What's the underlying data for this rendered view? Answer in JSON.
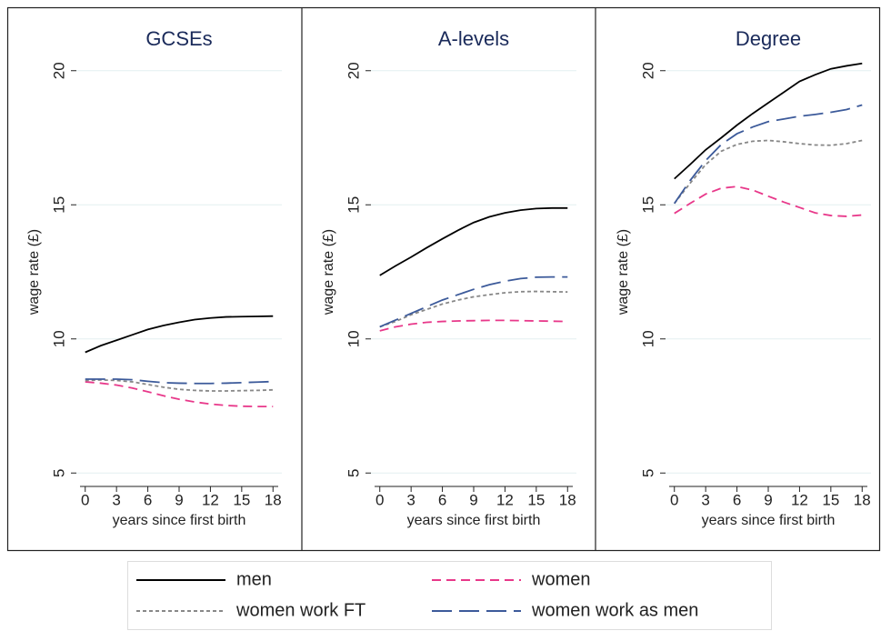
{
  "chart_data": [
    {
      "type": "line",
      "title": "GCSEs",
      "x_label": "years since first birth",
      "y_label": "wage rate (£)",
      "x": [
        0,
        1.5,
        3,
        4.5,
        6,
        7.5,
        9,
        10.5,
        12,
        13.5,
        15,
        16.5,
        18
      ],
      "xlim": [
        -0.5,
        18.5
      ],
      "xticks": [
        0,
        3,
        6,
        9,
        12,
        15,
        18
      ],
      "ylim": [
        4.5,
        20.5
      ],
      "yticks": [
        5,
        10,
        15,
        20
      ],
      "grid": true,
      "series": [
        {
          "name": "men",
          "color": "#000000",
          "style": "solid",
          "values": [
            9.5,
            9.75,
            9.95,
            10.15,
            10.35,
            10.5,
            10.62,
            10.72,
            10.78,
            10.82,
            10.83,
            10.84,
            10.85
          ]
        },
        {
          "name": "women",
          "color": "#e8388a",
          "style": "dashed",
          "values": [
            8.4,
            8.35,
            8.28,
            8.17,
            8.03,
            7.88,
            7.75,
            7.65,
            7.57,
            7.52,
            7.49,
            7.48,
            7.48
          ]
        },
        {
          "name": "women work FT",
          "color": "#888888",
          "style": "dotted",
          "values": [
            8.45,
            8.47,
            8.45,
            8.4,
            8.3,
            8.2,
            8.12,
            8.08,
            8.06,
            8.06,
            8.07,
            8.08,
            8.1
          ]
        },
        {
          "name": "women work as men",
          "color": "#3c5a9a",
          "style": "longdash",
          "values": [
            8.5,
            8.5,
            8.5,
            8.48,
            8.42,
            8.37,
            8.35,
            8.34,
            8.34,
            8.35,
            8.37,
            8.39,
            8.41
          ]
        }
      ]
    },
    {
      "type": "line",
      "title": "A-levels",
      "x_label": "years since first birth",
      "y_label": "wage rate (£)",
      "x": [
        0,
        1.5,
        3,
        4.5,
        6,
        7.5,
        9,
        10.5,
        12,
        13.5,
        15,
        16.5,
        18
      ],
      "xlim": [
        -0.5,
        18.5
      ],
      "xticks": [
        0,
        3,
        6,
        9,
        12,
        15,
        18
      ],
      "ylim": [
        4.5,
        20.5
      ],
      "yticks": [
        5,
        10,
        15,
        20
      ],
      "grid": true,
      "series": [
        {
          "name": "men",
          "color": "#000000",
          "style": "solid",
          "values": [
            12.37,
            12.72,
            13.05,
            13.4,
            13.73,
            14.05,
            14.34,
            14.55,
            14.7,
            14.8,
            14.86,
            14.88,
            14.88
          ]
        },
        {
          "name": "women",
          "color": "#e8388a",
          "style": "dashed",
          "values": [
            10.3,
            10.45,
            10.55,
            10.62,
            10.65,
            10.67,
            10.68,
            10.69,
            10.69,
            10.68,
            10.67,
            10.66,
            10.65
          ]
        },
        {
          "name": "women work FT",
          "color": "#888888",
          "style": "dotted",
          "values": [
            10.45,
            10.65,
            10.9,
            11.1,
            11.3,
            11.45,
            11.57,
            11.65,
            11.72,
            11.76,
            11.77,
            11.76,
            11.75
          ]
        },
        {
          "name": "women work as men",
          "color": "#3c5a9a",
          "style": "longdash",
          "values": [
            10.45,
            10.7,
            10.95,
            11.2,
            11.45,
            11.65,
            11.85,
            12.02,
            12.15,
            12.25,
            12.3,
            12.31,
            12.31
          ]
        }
      ]
    },
    {
      "type": "line",
      "title": "Degree",
      "x_label": "years since first birth",
      "y_label": "wage rate (£)",
      "x": [
        0,
        1.5,
        3,
        4.5,
        6,
        7.5,
        9,
        10.5,
        12,
        13.5,
        15,
        16.5,
        18
      ],
      "xlim": [
        -0.5,
        18.5
      ],
      "xticks": [
        0,
        3,
        6,
        9,
        12,
        15,
        18
      ],
      "ylim": [
        4.5,
        20.5
      ],
      "yticks": [
        5,
        10,
        15,
        20
      ],
      "grid": true,
      "series": [
        {
          "name": "men",
          "color": "#000000",
          "style": "solid",
          "values": [
            15.97,
            16.5,
            17.05,
            17.5,
            17.97,
            18.4,
            18.8,
            19.2,
            19.6,
            19.85,
            20.07,
            20.18,
            20.27
          ]
        },
        {
          "name": "women",
          "color": "#e8388a",
          "style": "dashed",
          "values": [
            14.68,
            15.05,
            15.4,
            15.62,
            15.68,
            15.55,
            15.32,
            15.1,
            14.9,
            14.7,
            14.6,
            14.57,
            14.62
          ]
        },
        {
          "name": "women work FT",
          "color": "#888888",
          "style": "dotted",
          "values": [
            15.05,
            15.8,
            16.5,
            17,
            17.25,
            17.37,
            17.4,
            17.35,
            17.28,
            17.23,
            17.22,
            17.28,
            17.4
          ]
        },
        {
          "name": "women work as men",
          "color": "#3c5a9a",
          "style": "longdash",
          "values": [
            15.05,
            15.9,
            16.65,
            17.25,
            17.65,
            17.9,
            18.1,
            18.2,
            18.3,
            18.37,
            18.45,
            18.55,
            18.72
          ]
        }
      ]
    }
  ]
}
